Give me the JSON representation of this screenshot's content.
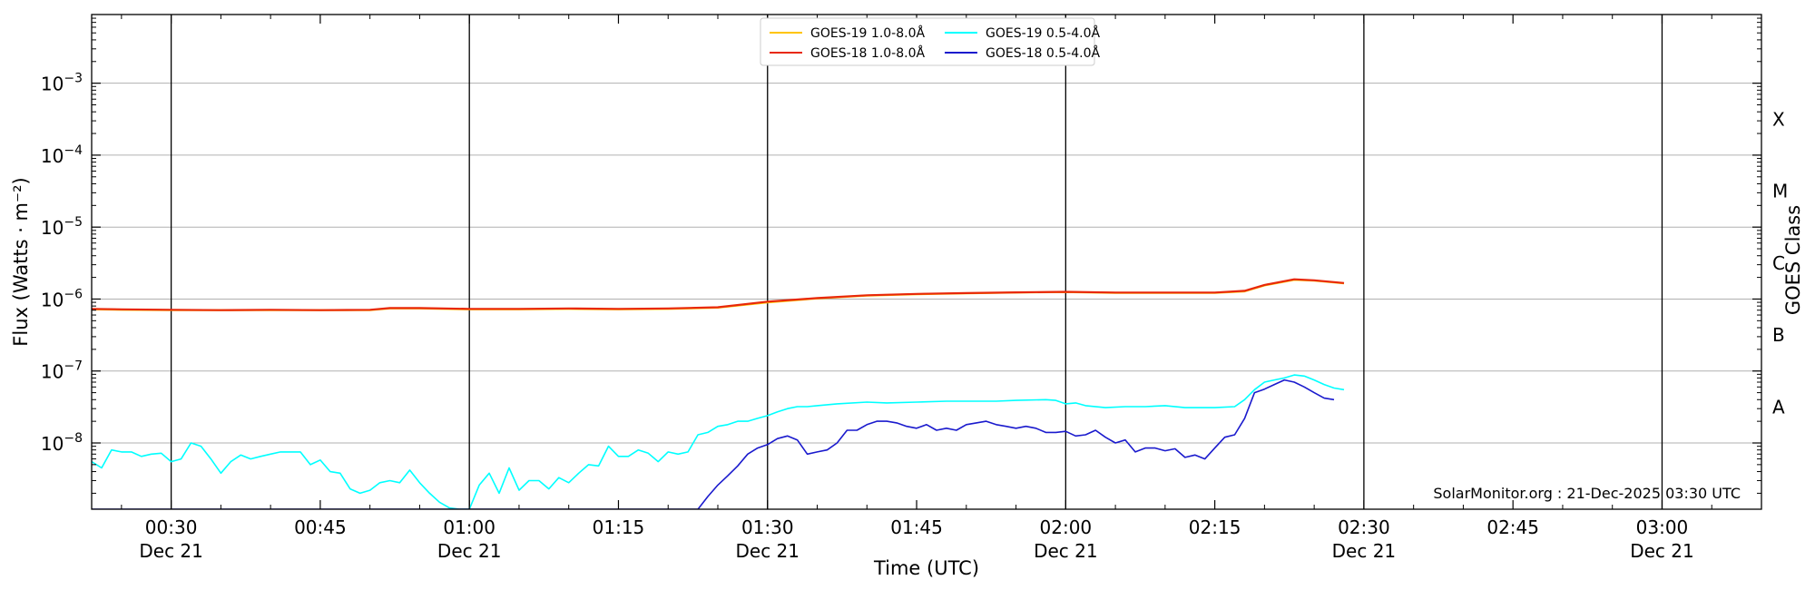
{
  "chart_data": {
    "type": "line",
    "xlabel": "Time (UTC)",
    "ylabel": "Flux (Watts · m⁻²)",
    "y2label": "GOES Class",
    "y_scale": "log",
    "xlim": [
      "00:22",
      "03:10"
    ],
    "ylim": [
      1.2e-09,
      0.009
    ],
    "grid": "horizontal",
    "legend_placement": "top-center",
    "credit": "SolarMonitor.org : 21-Dec-2025 03:30 UTC",
    "x_ticks": [
      {
        "time": "00:30",
        "label": "00:30",
        "date": "Dec 21"
      },
      {
        "time": "00:45",
        "label": "00:45",
        "date": ""
      },
      {
        "time": "01:00",
        "label": "01:00",
        "date": "Dec 21"
      },
      {
        "time": "01:15",
        "label": "01:15",
        "date": ""
      },
      {
        "time": "01:30",
        "label": "01:30",
        "date": "Dec 21"
      },
      {
        "time": "01:45",
        "label": "01:45",
        "date": ""
      },
      {
        "time": "02:00",
        "label": "02:00",
        "date": "Dec 21"
      },
      {
        "time": "02:15",
        "label": "02:15",
        "date": ""
      },
      {
        "time": "02:30",
        "label": "02:30",
        "date": "Dec 21"
      },
      {
        "time": "02:45",
        "label": "02:45",
        "date": ""
      },
      {
        "time": "03:00",
        "label": "03:00",
        "date": "Dec 21"
      }
    ],
    "vlines": [
      "00:30",
      "01:00",
      "01:30",
      "02:00",
      "02:30",
      "03:00"
    ],
    "y_ticks": [
      {
        "value": 1e-08,
        "base": "10",
        "exp": "−8"
      },
      {
        "value": 1e-07,
        "base": "10",
        "exp": "−7"
      },
      {
        "value": 1e-06,
        "base": "10",
        "exp": "−6"
      },
      {
        "value": 1e-05,
        "base": "10",
        "exp": "−5"
      },
      {
        "value": 0.0001,
        "base": "10",
        "exp": "−4"
      },
      {
        "value": 0.001,
        "base": "10",
        "exp": "−3"
      }
    ],
    "goes_classes": [
      {
        "label": "X",
        "value": 0.000316
      },
      {
        "label": "M",
        "value": 3.16e-05
      },
      {
        "label": "C",
        "value": 3.16e-06
      },
      {
        "label": "B",
        "value": 3.16e-07
      },
      {
        "label": "A",
        "value": 3.16e-08
      }
    ],
    "series": [
      {
        "name": "GOES-19 1.0-8.0Å",
        "color": "#ffc400",
        "width": 2.2,
        "points": [
          [
            "00:22",
            7.2e-07
          ],
          [
            "00:25",
            7.1e-07
          ],
          [
            "00:30",
            7e-07
          ],
          [
            "00:35",
            7e-07
          ],
          [
            "00:40",
            7e-07
          ],
          [
            "00:45",
            7e-07
          ],
          [
            "00:50",
            7e-07
          ],
          [
            "00:52",
            7.4e-07
          ],
          [
            "00:55",
            7.4e-07
          ],
          [
            "01:00",
            7.2e-07
          ],
          [
            "01:05",
            7.2e-07
          ],
          [
            "01:10",
            7.3e-07
          ],
          [
            "01:15",
            7.2e-07
          ],
          [
            "01:20",
            7.3e-07
          ],
          [
            "01:25",
            7.6e-07
          ],
          [
            "01:30",
            9e-07
          ],
          [
            "01:35",
            1.02e-06
          ],
          [
            "01:40",
            1.12e-06
          ],
          [
            "01:45",
            1.17e-06
          ],
          [
            "01:50",
            1.2e-06
          ],
          [
            "01:55",
            1.23e-06
          ],
          [
            "02:00",
            1.25e-06
          ],
          [
            "02:05",
            1.22e-06
          ],
          [
            "02:10",
            1.22e-06
          ],
          [
            "02:15",
            1.22e-06
          ],
          [
            "02:18",
            1.28e-06
          ],
          [
            "02:20",
            1.55e-06
          ],
          [
            "02:23",
            1.85e-06
          ],
          [
            "02:25",
            1.8e-06
          ],
          [
            "02:28",
            1.65e-06
          ]
        ]
      },
      {
        "name": "GOES-18 1.0-8.0Å",
        "color": "#e8280a",
        "width": 2.2,
        "points": [
          [
            "00:22",
            7.3e-07
          ],
          [
            "00:25",
            7.2e-07
          ],
          [
            "00:30",
            7.1e-07
          ],
          [
            "00:35",
            7e-07
          ],
          [
            "00:40",
            7.1e-07
          ],
          [
            "00:45",
            7e-07
          ],
          [
            "00:50",
            7.1e-07
          ],
          [
            "00:52",
            7.5e-07
          ],
          [
            "00:55",
            7.5e-07
          ],
          [
            "01:00",
            7.3e-07
          ],
          [
            "01:05",
            7.3e-07
          ],
          [
            "01:10",
            7.4e-07
          ],
          [
            "01:15",
            7.3e-07
          ],
          [
            "01:20",
            7.4e-07
          ],
          [
            "01:25",
            7.7e-07
          ],
          [
            "01:30",
            9.2e-07
          ],
          [
            "01:35",
            1.03e-06
          ],
          [
            "01:40",
            1.13e-06
          ],
          [
            "01:45",
            1.18e-06
          ],
          [
            "01:50",
            1.21e-06
          ],
          [
            "01:55",
            1.24e-06
          ],
          [
            "02:00",
            1.26e-06
          ],
          [
            "02:05",
            1.23e-06
          ],
          [
            "02:10",
            1.23e-06
          ],
          [
            "02:15",
            1.23e-06
          ],
          [
            "02:18",
            1.3e-06
          ],
          [
            "02:20",
            1.57e-06
          ],
          [
            "02:23",
            1.88e-06
          ],
          [
            "02:25",
            1.82e-06
          ],
          [
            "02:28",
            1.67e-06
          ]
        ]
      },
      {
        "name": "GOES-19 0.5-4.0Å",
        "color": "#00ffff",
        "width": 1.6,
        "points": [
          [
            "00:22",
            5.5e-09
          ],
          [
            "00:23",
            4.5e-09
          ],
          [
            "00:24",
            8e-09
          ],
          [
            "00:25",
            7.5e-09
          ],
          [
            "00:26",
            7.5e-09
          ],
          [
            "00:27",
            6.5e-09
          ],
          [
            "00:28",
            7e-09
          ],
          [
            "00:29",
            7.2e-09
          ],
          [
            "00:30",
            5.5e-09
          ],
          [
            "00:31",
            6e-09
          ],
          [
            "00:32",
            1e-08
          ],
          [
            "00:33",
            9e-09
          ],
          [
            "00:34",
            6e-09
          ],
          [
            "00:35",
            3.8e-09
          ],
          [
            "00:36",
            5.5e-09
          ],
          [
            "00:37",
            6.8e-09
          ],
          [
            "00:38",
            6e-09
          ],
          [
            "00:39",
            6.5e-09
          ],
          [
            "00:40",
            7e-09
          ],
          [
            "00:41",
            7.5e-09
          ],
          [
            "00:42",
            7.5e-09
          ],
          [
            "00:43",
            7.5e-09
          ],
          [
            "00:44",
            5e-09
          ],
          [
            "00:45",
            5.8e-09
          ],
          [
            "00:46",
            4e-09
          ],
          [
            "00:47",
            3.8e-09
          ],
          [
            "00:48",
            2.3e-09
          ],
          [
            "00:49",
            2e-09
          ],
          [
            "00:50",
            2.2e-09
          ],
          [
            "00:51",
            2.8e-09
          ],
          [
            "00:52",
            3e-09
          ],
          [
            "00:53",
            2.8e-09
          ],
          [
            "00:54",
            4.2e-09
          ],
          [
            "00:55",
            2.8e-09
          ],
          [
            "00:56",
            2e-09
          ],
          [
            "00:57",
            1.5e-09
          ],
          [
            "00:58",
            1.25e-09
          ],
          [
            "00:59",
            1.2e-09
          ],
          [
            "01:00",
            1.2e-09
          ],
          [
            "01:01",
            2.6e-09
          ],
          [
            "01:02",
            3.8e-09
          ],
          [
            "01:03",
            2e-09
          ],
          [
            "01:04",
            4.5e-09
          ],
          [
            "01:05",
            2.2e-09
          ],
          [
            "01:06",
            3e-09
          ],
          [
            "01:07",
            3e-09
          ],
          [
            "01:08",
            2.3e-09
          ],
          [
            "01:09",
            3.3e-09
          ],
          [
            "01:10",
            2.8e-09
          ],
          [
            "01:11",
            3.8e-09
          ],
          [
            "01:12",
            5e-09
          ],
          [
            "01:13",
            4.8e-09
          ],
          [
            "01:14",
            9e-09
          ],
          [
            "01:15",
            6.5e-09
          ],
          [
            "01:16",
            6.5e-09
          ],
          [
            "01:17",
            8e-09
          ],
          [
            "01:18",
            7.2e-09
          ],
          [
            "01:19",
            5.5e-09
          ],
          [
            "01:20",
            7.5e-09
          ],
          [
            "01:21",
            7e-09
          ],
          [
            "01:22",
            7.5e-09
          ],
          [
            "01:23",
            1.3e-08
          ],
          [
            "01:24",
            1.4e-08
          ],
          [
            "01:25",
            1.7e-08
          ],
          [
            "01:26",
            1.8e-08
          ],
          [
            "01:27",
            2e-08
          ],
          [
            "01:28",
            2e-08
          ],
          [
            "01:29",
            2.2e-08
          ],
          [
            "01:30",
            2.4e-08
          ],
          [
            "01:31",
            2.7e-08
          ],
          [
            "01:32",
            3e-08
          ],
          [
            "01:33",
            3.2e-08
          ],
          [
            "01:34",
            3.2e-08
          ],
          [
            "01:35",
            3.3e-08
          ],
          [
            "01:37",
            3.5e-08
          ],
          [
            "01:40",
            3.7e-08
          ],
          [
            "01:42",
            3.6e-08
          ],
          [
            "01:45",
            3.7e-08
          ],
          [
            "01:48",
            3.8e-08
          ],
          [
            "01:50",
            3.8e-08
          ],
          [
            "01:53",
            3.8e-08
          ],
          [
            "01:55",
            3.9e-08
          ],
          [
            "01:58",
            4e-08
          ],
          [
            "01:59",
            3.9e-08
          ],
          [
            "02:00",
            3.5e-08
          ],
          [
            "02:01",
            3.6e-08
          ],
          [
            "02:02",
            3.3e-08
          ],
          [
            "02:04",
            3.1e-08
          ],
          [
            "02:06",
            3.2e-08
          ],
          [
            "02:08",
            3.2e-08
          ],
          [
            "02:10",
            3.3e-08
          ],
          [
            "02:12",
            3.1e-08
          ],
          [
            "02:15",
            3.1e-08
          ],
          [
            "02:17",
            3.2e-08
          ],
          [
            "02:18",
            4e-08
          ],
          [
            "02:19",
            5.5e-08
          ],
          [
            "02:20",
            7e-08
          ],
          [
            "02:21",
            7.5e-08
          ],
          [
            "02:22",
            8e-08
          ],
          [
            "02:23",
            8.8e-08
          ],
          [
            "02:24",
            8.5e-08
          ],
          [
            "02:25",
            7.5e-08
          ],
          [
            "02:26",
            6.5e-08
          ],
          [
            "02:27",
            5.8e-08
          ],
          [
            "02:28",
            5.5e-08
          ]
        ]
      },
      {
        "name": "GOES-18 0.5-4.0Å",
        "color": "#1a1acd",
        "width": 1.6,
        "points": [
          [
            "00:22",
            1.2e-09
          ],
          [
            "01:00",
            1.2e-09
          ],
          [
            "01:20",
            1.2e-09
          ],
          [
            "01:23",
            1.2e-09
          ],
          [
            "01:24",
            1.8e-09
          ],
          [
            "01:25",
            2.6e-09
          ],
          [
            "01:26",
            3.5e-09
          ],
          [
            "01:27",
            4.8e-09
          ],
          [
            "01:28",
            7e-09
          ],
          [
            "01:29",
            8.5e-09
          ],
          [
            "01:30",
            9.5e-09
          ],
          [
            "01:31",
            1.15e-08
          ],
          [
            "01:32",
            1.25e-08
          ],
          [
            "01:33",
            1.1e-08
          ],
          [
            "01:34",
            7e-09
          ],
          [
            "01:35",
            7.5e-09
          ],
          [
            "01:36",
            8e-09
          ],
          [
            "01:37",
            1e-08
          ],
          [
            "01:38",
            1.5e-08
          ],
          [
            "01:39",
            1.5e-08
          ],
          [
            "01:40",
            1.8e-08
          ],
          [
            "01:41",
            2e-08
          ],
          [
            "01:42",
            2e-08
          ],
          [
            "01:43",
            1.9e-08
          ],
          [
            "01:44",
            1.7e-08
          ],
          [
            "01:45",
            1.6e-08
          ],
          [
            "01:46",
            1.8e-08
          ],
          [
            "01:47",
            1.5e-08
          ],
          [
            "01:48",
            1.6e-08
          ],
          [
            "01:49",
            1.5e-08
          ],
          [
            "01:50",
            1.8e-08
          ],
          [
            "01:51",
            1.9e-08
          ],
          [
            "01:52",
            2e-08
          ],
          [
            "01:53",
            1.8e-08
          ],
          [
            "01:54",
            1.7e-08
          ],
          [
            "01:55",
            1.6e-08
          ],
          [
            "01:56",
            1.7e-08
          ],
          [
            "01:57",
            1.6e-08
          ],
          [
            "01:58",
            1.4e-08
          ],
          [
            "01:59",
            1.4e-08
          ],
          [
            "02:00",
            1.45e-08
          ],
          [
            "02:01",
            1.25e-08
          ],
          [
            "02:02",
            1.3e-08
          ],
          [
            "02:03",
            1.5e-08
          ],
          [
            "02:04",
            1.2e-08
          ],
          [
            "02:05",
            1e-08
          ],
          [
            "02:06",
            1.1e-08
          ],
          [
            "02:07",
            7.5e-09
          ],
          [
            "02:08",
            8.5e-09
          ],
          [
            "02:09",
            8.5e-09
          ],
          [
            "02:10",
            7.8e-09
          ],
          [
            "02:11",
            8.3e-09
          ],
          [
            "02:12",
            6.3e-09
          ],
          [
            "02:13",
            6.8e-09
          ],
          [
            "02:14",
            6e-09
          ],
          [
            "02:15",
            8.5e-09
          ],
          [
            "02:16",
            1.2e-08
          ],
          [
            "02:17",
            1.3e-08
          ],
          [
            "02:18",
            2.2e-08
          ],
          [
            "02:19",
            5e-08
          ],
          [
            "02:20",
            5.6e-08
          ],
          [
            "02:21",
            6.5e-08
          ],
          [
            "02:22",
            7.5e-08
          ],
          [
            "02:23",
            7e-08
          ],
          [
            "02:24",
            6e-08
          ],
          [
            "02:25",
            5e-08
          ],
          [
            "02:26",
            4.2e-08
          ],
          [
            "02:27",
            4e-08
          ]
        ]
      }
    ]
  }
}
